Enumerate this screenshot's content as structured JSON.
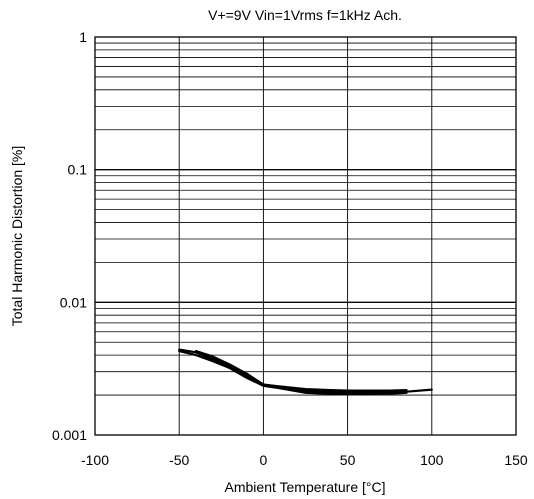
{
  "chart_data": {
    "type": "line",
    "title": "V+=9V Vin=1Vrms f=1kHz Ach.",
    "xlabel": "Ambient Temperature [°C]",
    "ylabel": "Total Harmonic Distortion [%]",
    "xlim": [
      -100,
      150
    ],
    "ylim": [
      0.001,
      1
    ],
    "yscale": "log",
    "grid": true,
    "x_ticks": [
      "-100",
      "-50",
      "0",
      "50",
      "100",
      "150"
    ],
    "y_ticks": [
      "0.001",
      "0.01",
      "0.1",
      "1"
    ],
    "series": [
      {
        "x": [
          -50,
          -40,
          -30,
          -20,
          -10,
          0,
          10,
          25,
          40,
          50,
          60,
          75,
          85,
          100
        ],
        "y": [
          0.0043,
          0.004,
          0.0036,
          0.0032,
          0.0028,
          0.0024,
          0.0023,
          0.00215,
          0.0021,
          0.0021,
          0.0021,
          0.0021,
          0.00212,
          0.0022
        ]
      },
      {
        "x": [
          -50,
          -40,
          -30,
          -20,
          -10,
          0,
          10,
          25,
          40,
          50,
          60,
          75,
          85
        ],
        "y": [
          0.0044,
          0.0042,
          0.0038,
          0.0033,
          0.0029,
          0.0024,
          0.00232,
          0.00222,
          0.00218,
          0.00216,
          0.00216,
          0.00216,
          0.00218
        ]
      },
      {
        "x": [
          -40,
          -30,
          -20,
          -10,
          0,
          10,
          25,
          40,
          50,
          60,
          75,
          85
        ],
        "y": [
          0.0042,
          0.0037,
          0.0032,
          0.0027,
          0.00235,
          0.00225,
          0.00208,
          0.00204,
          0.00204,
          0.00204,
          0.00205,
          0.00208
        ]
      },
      {
        "x": [
          -40,
          -30,
          -20,
          -10,
          0,
          10,
          25,
          40,
          50,
          60,
          75,
          85
        ],
        "y": [
          0.0043,
          0.0039,
          0.0034,
          0.0029,
          0.0024,
          0.00228,
          0.00214,
          0.00211,
          0.00211,
          0.00211,
          0.00212,
          0.00214
        ]
      }
    ]
  }
}
